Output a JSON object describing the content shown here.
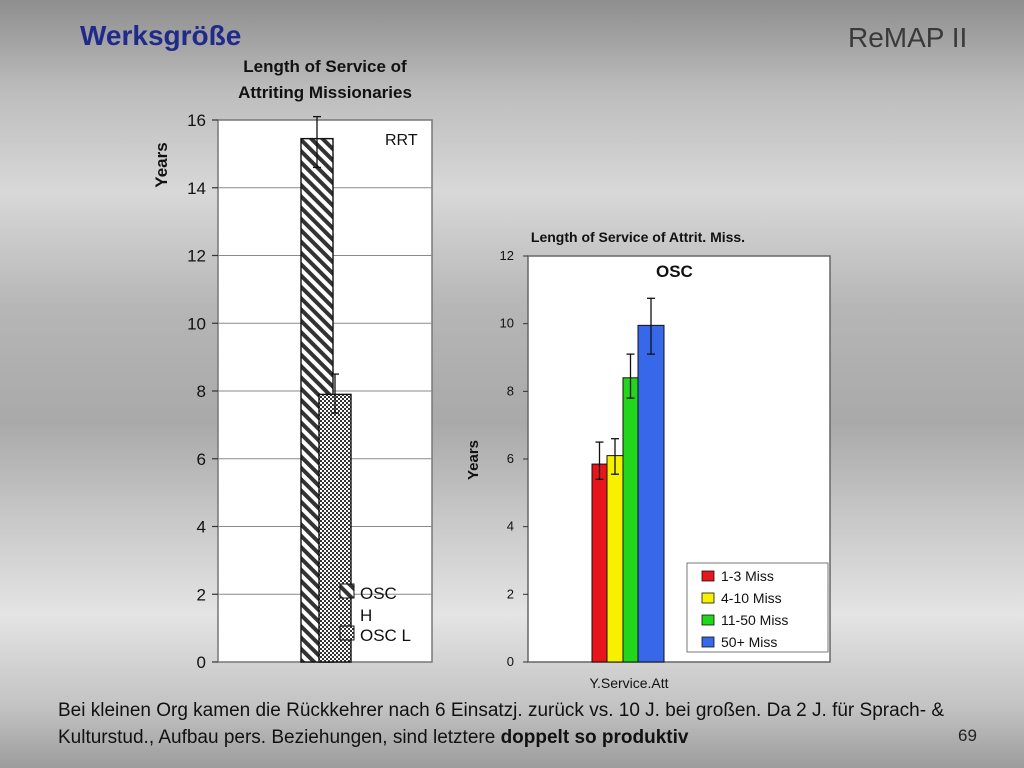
{
  "slide": {
    "title": "Werksgröße",
    "brand": "ReMAP II",
    "caption_plain": "Bei kleinen Org kamen die Rückkehrer nach 6 Einsatzj. zurück vs. 10 J. bei großen. Da 2 J. für Sprach- & Kulturstud., Aufbau pers. Beziehungen, sind letztere ",
    "caption_bold": "doppelt so produktiv",
    "page_number": "69"
  },
  "chart_data": [
    {
      "type": "bar",
      "title": "Length of Service of Attriting Missionaries",
      "title_lines": [
        "Length of Service of",
        "Attriting Missionaries"
      ],
      "ylabel": "Years",
      "xlabel": "",
      "annotation": "RRT",
      "ylim": [
        0,
        16
      ],
      "yticks": [
        0,
        2,
        4,
        6,
        8,
        10,
        12,
        14,
        16
      ],
      "grid": true,
      "legend_placement": "bottom-right",
      "series": [
        {
          "name": "OSC H",
          "legend_lines": [
            "OSC",
            "H"
          ],
          "value": 15.45,
          "err": [
            14.6,
            16.1
          ],
          "pattern": "diagonal-stripes"
        },
        {
          "name": "OSC L",
          "legend_lines": [
            "OSC L"
          ],
          "value": 7.9,
          "err": [
            7.35,
            8.5
          ],
          "pattern": "checker"
        }
      ]
    },
    {
      "type": "bar",
      "title": "Length of Service of Attrit. Miss.",
      "ylabel": "Years",
      "xlabel": "",
      "categories": [
        "Y.Service.Att"
      ],
      "annotation": "OSC",
      "ylim": [
        0,
        12
      ],
      "yticks": [
        0,
        2,
        4,
        6,
        8,
        10,
        12
      ],
      "grid": false,
      "legend_placement": "bottom-right",
      "series": [
        {
          "name": "1-3 Miss",
          "value": 5.85,
          "err": [
            5.4,
            6.5
          ],
          "color": "#e8161b"
        },
        {
          "name": "4-10 Miss",
          "value": 6.1,
          "err": [
            5.55,
            6.6
          ],
          "color": "#f7f100"
        },
        {
          "name": "11-50 Miss",
          "value": 8.4,
          "err": [
            7.8,
            9.1
          ],
          "color": "#22d61c"
        },
        {
          "name": "50+ Miss",
          "value": 9.95,
          "err": [
            9.1,
            10.75
          ],
          "color": "#3768ea"
        }
      ]
    }
  ],
  "colors": {
    "title": "#1f2a8a"
  }
}
